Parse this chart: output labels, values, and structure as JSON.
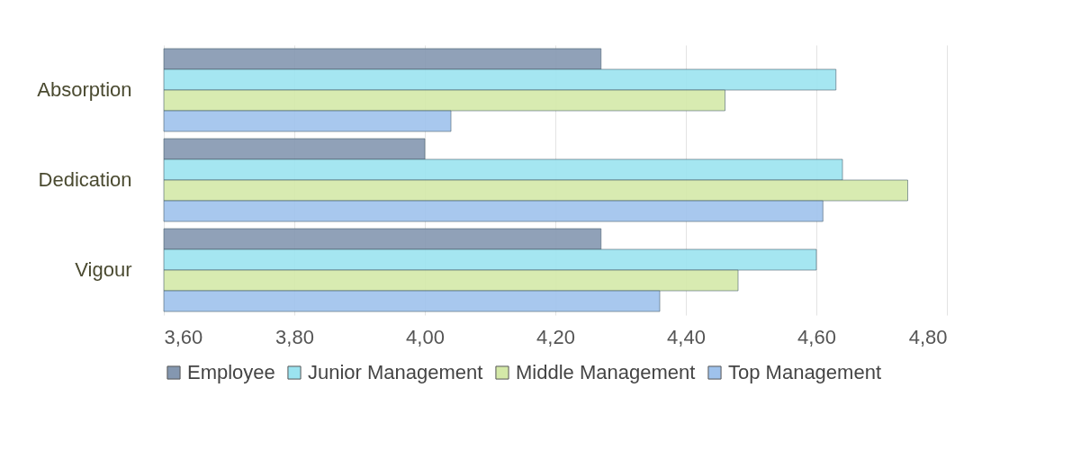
{
  "chart_data": {
    "type": "bar",
    "orientation": "horizontal",
    "categories": [
      "Absorption",
      "Dedication",
      "Vigour"
    ],
    "series": [
      {
        "name": "Employee",
        "color": "#8497b0",
        "values": [
          4.27,
          4.0,
          4.27
        ]
      },
      {
        "name": "Junior Management",
        "color": "#9be3f0",
        "values": [
          4.63,
          4.64,
          4.6
        ]
      },
      {
        "name": "Middle Management",
        "color": "#d4e9a8",
        "values": [
          4.46,
          4.74,
          4.48
        ]
      },
      {
        "name": "Top Management",
        "color": "#9fc2ec",
        "values": [
          4.04,
          4.61,
          4.36
        ]
      }
    ],
    "xlim": [
      3.6,
      4.8
    ],
    "xticks": [
      {
        "value": 3.6,
        "label": "3,60"
      },
      {
        "value": 3.8,
        "label": "3,80"
      },
      {
        "value": 4.0,
        "label": "4,00"
      },
      {
        "value": 4.2,
        "label": "4,20"
      },
      {
        "value": 4.4,
        "label": "4,40"
      },
      {
        "value": 4.6,
        "label": "4,60"
      },
      {
        "value": 4.8,
        "label": "4,80"
      }
    ],
    "grid": "x",
    "legend": "bottom"
  }
}
